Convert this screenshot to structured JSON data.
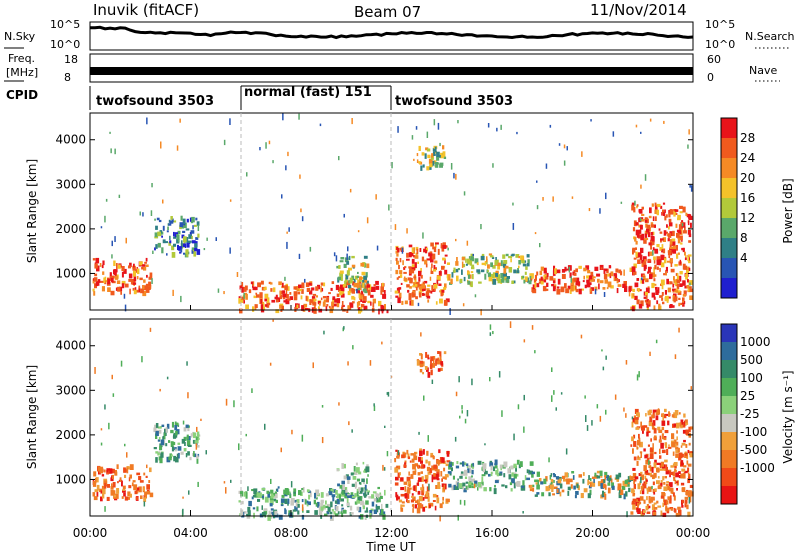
{
  "header": {
    "station": "Inuvik (fitACF)",
    "beam": "Beam 07",
    "date": "11/Nov/2014"
  },
  "noise_panel": {
    "left_label": "N.Sky",
    "left_ticks": [
      "10^5",
      "10^0"
    ],
    "right_ticks": [
      "10^5",
      "10^0"
    ],
    "right_label": "N.Search"
  },
  "freq_panel": {
    "left_label_line1": "Freq.",
    "left_label_line2": "[MHz]",
    "left_ticks": [
      "18",
      "8"
    ],
    "right_ticks": [
      "60",
      "0"
    ],
    "right_label": "Nave"
  },
  "cpid": {
    "label": "CPID",
    "segments": [
      {
        "name": "twofsound 3503",
        "start_hour": 0,
        "end_hour": 6
      },
      {
        "name": "normal (fast) 151",
        "start_hour": 6,
        "end_hour": 12
      },
      {
        "name": "twofsound 3503",
        "start_hour": 12,
        "end_hour": 24
      }
    ]
  },
  "x_axis": {
    "label": "Time UT",
    "ticks": [
      "00:00",
      "04:00",
      "08:00",
      "12:00",
      "16:00",
      "20:00",
      "00:00"
    ],
    "range_hours": [
      0,
      24
    ]
  },
  "chart_data": [
    {
      "type": "heatmap",
      "name": "power",
      "ylabel": "Slant Range [km]",
      "ylim": [
        180,
        4600
      ],
      "yticks": [
        "1000",
        "2000",
        "3000",
        "4000"
      ],
      "ytick_values": [
        1000,
        2000,
        3000,
        4000
      ],
      "colorbar": {
        "label": "Power [dB]",
        "ticks": [
          "28",
          "24",
          "20",
          "16",
          "12",
          "8",
          "4"
        ],
        "tick_values": [
          28,
          24,
          20,
          16,
          12,
          8,
          4
        ],
        "colors_top_to_bottom": [
          "#e8141a",
          "#f05a1e",
          "#f58a25",
          "#f4c22a",
          "#b2c93a",
          "#5aa86a",
          "#2f7f86",
          "#2855b4",
          "#1f1fcf"
        ]
      },
      "echo_regions": [
        {
          "t0": 0.1,
          "t1": 2.4,
          "r0": 600,
          "r1": 1350,
          "level": "high"
        },
        {
          "t0": 2.5,
          "t1": 4.3,
          "r0": 1450,
          "r1": 2300,
          "level": "low"
        },
        {
          "t0": 5.9,
          "t1": 11.8,
          "r0": 190,
          "r1": 850,
          "level": "high"
        },
        {
          "t0": 9.8,
          "t1": 11.0,
          "r0": 600,
          "r1": 1400,
          "level": "mid"
        },
        {
          "t0": 12.1,
          "t1": 14.2,
          "r0": 350,
          "r1": 1700,
          "level": "high"
        },
        {
          "t0": 13.0,
          "t1": 14.1,
          "r0": 3400,
          "r1": 3900,
          "level": "mid"
        },
        {
          "t0": 14.2,
          "t1": 17.5,
          "r0": 800,
          "r1": 1450,
          "level": "mid"
        },
        {
          "t0": 17.5,
          "t1": 21.5,
          "r0": 650,
          "r1": 1200,
          "level": "high"
        },
        {
          "t0": 21.5,
          "t1": 23.9,
          "r0": 250,
          "r1": 2600,
          "level": "high"
        }
      ]
    },
    {
      "type": "heatmap",
      "name": "velocity",
      "ylabel": "Slant Range [km]",
      "ylim": [
        180,
        4600
      ],
      "yticks": [
        "1000",
        "2000",
        "3000",
        "4000"
      ],
      "ytick_values": [
        1000,
        2000,
        3000,
        4000
      ],
      "colorbar": {
        "label": "Velocity [m s⁻¹]",
        "ticks": [
          "1000",
          "500",
          "100",
          "25",
          "-25",
          "-100",
          "-500",
          "-1000"
        ],
        "tick_values": [
          1000,
          500,
          100,
          25,
          -25,
          -100,
          -500,
          -1000
        ],
        "colors_top_to_bottom": [
          "#2a35b8",
          "#2e6c9c",
          "#358a68",
          "#4fae58",
          "#8bd17a",
          "#c8c8c0",
          "#f0a03a",
          "#f07a24",
          "#f04a18",
          "#e81414"
        ]
      },
      "echo_regions": [
        {
          "t0": 0.1,
          "t1": 2.4,
          "r0": 600,
          "r1": 1350,
          "level": "neg"
        },
        {
          "t0": 2.5,
          "t1": 4.3,
          "r0": 1450,
          "r1": 2300,
          "level": "pos"
        },
        {
          "t0": 5.9,
          "t1": 11.8,
          "r0": 190,
          "r1": 850,
          "level": "pos"
        },
        {
          "t0": 9.8,
          "t1": 11.0,
          "r0": 600,
          "r1": 1400,
          "level": "pos"
        },
        {
          "t0": 12.1,
          "t1": 14.2,
          "r0": 350,
          "r1": 1700,
          "level": "neg"
        },
        {
          "t0": 13.0,
          "t1": 14.1,
          "r0": 3400,
          "r1": 3900,
          "level": "neg"
        },
        {
          "t0": 14.2,
          "t1": 17.5,
          "r0": 800,
          "r1": 1450,
          "level": "pos"
        },
        {
          "t0": 17.5,
          "t1": 21.5,
          "r0": 650,
          "r1": 1200,
          "level": "mix"
        },
        {
          "t0": 21.5,
          "t1": 23.9,
          "r0": 250,
          "r1": 2600,
          "level": "neg"
        }
      ]
    }
  ]
}
